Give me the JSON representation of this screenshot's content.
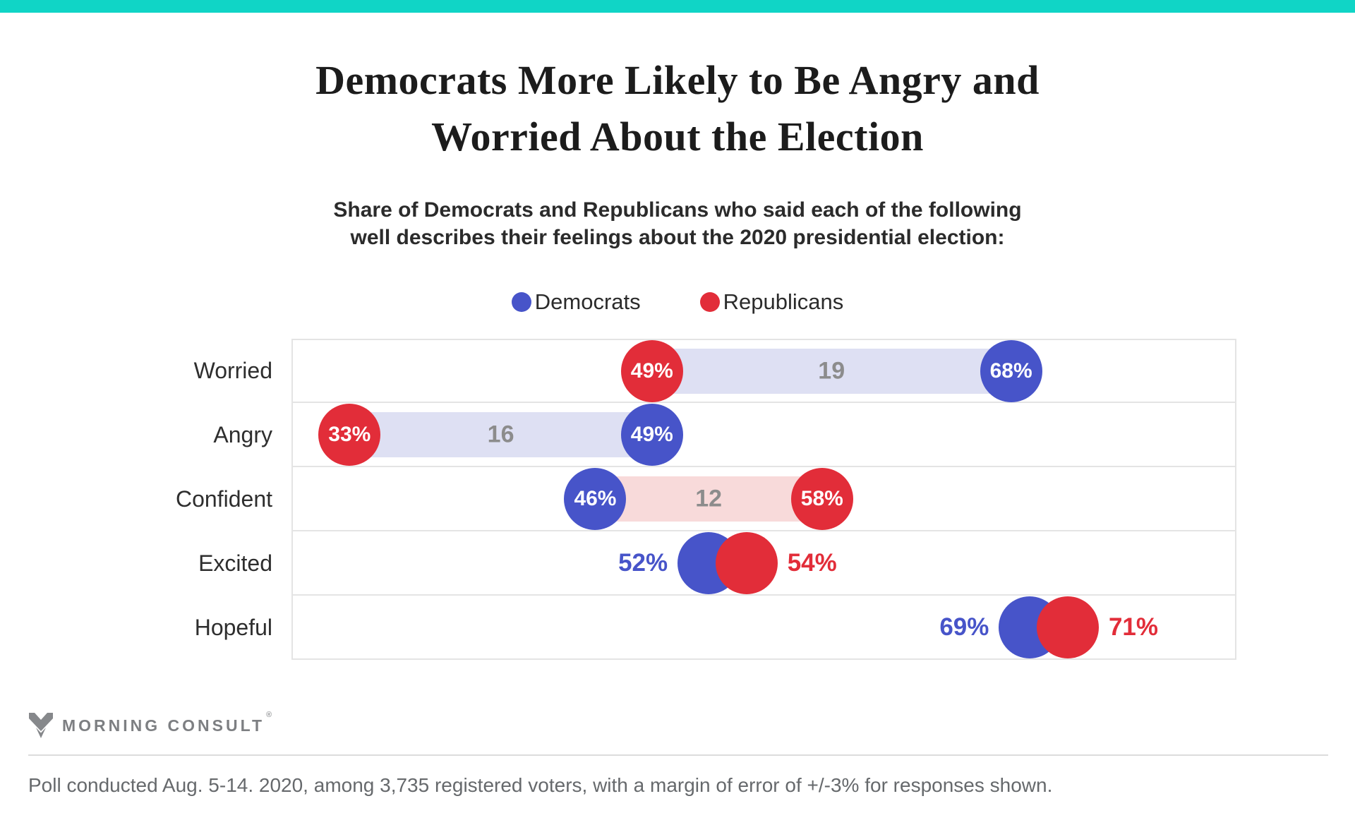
{
  "page": {
    "accent_teal": "#10d5c6",
    "background": "#ffffff"
  },
  "header": {
    "title_line1": "Democrats More Likely to Be Angry and",
    "title_line2": "Worried About the Election",
    "subtitle_line1": "Share of Democrats and Republicans who said each of the following",
    "subtitle_line2": "well describes their feelings about the 2020 presidential election:"
  },
  "legend": {
    "items": [
      {
        "label": "Democrats",
        "color": "#4754c9"
      },
      {
        "label": "Republicans",
        "color": "#e22d39"
      }
    ]
  },
  "chart_data": {
    "type": "dumbbell",
    "categories": [
      "Worried",
      "Angry",
      "Confident",
      "Excited",
      "Hopeful"
    ],
    "series": [
      {
        "name": "Democrats",
        "color": "#4754c9",
        "values": [
          68,
          49,
          46,
          52,
          69
        ]
      },
      {
        "name": "Republicans",
        "color": "#e22d39",
        "values": [
          49,
          33,
          58,
          54,
          71
        ]
      }
    ],
    "gaps": [
      19,
      16,
      12,
      null,
      null
    ],
    "gap_band_colors": [
      "#dee0f3",
      "#dee0f3",
      "#f8dada",
      null,
      null
    ],
    "gap_label_color": "#8c8c8c",
    "label_placement": [
      "inside",
      "inside",
      "inside",
      "outside",
      "outside"
    ],
    "value_suffix": "%",
    "xlim": [
      30,
      80
    ],
    "grid": "horizontal-row-separators",
    "legend_position": "top-center",
    "title": "Democrats More Likely to Be Angry and Worried About the Election",
    "xlabel": "",
    "ylabel": ""
  },
  "footer": {
    "brand": "MORNING CONSULT",
    "registered_mark": "®",
    "logo_icon": "morning-consult-m-logo",
    "note": "Poll conducted Aug. 5-14. 2020, among 3,735 registered voters, with a margin of error of +/-3% for responses shown."
  }
}
